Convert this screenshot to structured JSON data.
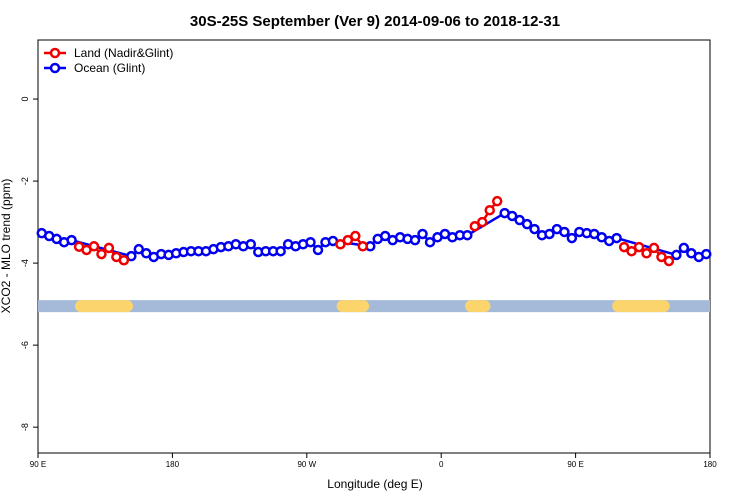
{
  "chart_data": {
    "type": "line",
    "title": "30S-25S September (Ver 9)   2014-09-06 to 2018-12-31",
    "x_label": "Longitude (deg E)",
    "y_label": "XCO2 - MLO trend (ppm)",
    "xlim": [
      90,
      540
    ],
    "ylim": [
      -8.63,
      1.44
    ],
    "xticks": [
      {
        "value": 90,
        "label": "90 E"
      },
      180,
      {
        "value": 270,
        "label": "90 W"
      },
      {
        "value": 360,
        "label": "0"
      },
      {
        "value": 450,
        "label": "90 E"
      },
      {
        "value": 540,
        "label": "180"
      }
    ],
    "yticks": [
      0,
      -2,
      -4,
      -6,
      -8
    ],
    "legend": "top-left",
    "mask": {
      "y": -5.05,
      "ocean_color": "#a5b9d8",
      "land_color": "#fbd46c",
      "land_ranges": [
        [
          114.8,
          153.6
        ],
        [
          290,
          311.7
        ],
        [
          376,
          393
        ],
        [
          474.5,
          513
        ]
      ]
    },
    "series": [
      {
        "name": "Land (Nadir&Glint)",
        "color": "#ee0000",
        "x": [
          117.5,
          122.5,
          127.5,
          132.5,
          137.5,
          142.5,
          147.5,
          null,
          292.5,
          297.5,
          302.5,
          307.5,
          null,
          382.5,
          387.5,
          392.5,
          397.5,
          null,
          482.5,
          487.5,
          492.5,
          497.5,
          502.5,
          507.5,
          512.5
        ],
        "values": [
          -3.6,
          -3.68,
          -3.59,
          -3.78,
          -3.63,
          -3.85,
          -3.93,
          null,
          -3.54,
          -3.44,
          -3.34,
          -3.59,
          null,
          -3.1,
          -3.0,
          -2.71,
          -2.49,
          null,
          -3.61,
          -3.71,
          -3.61,
          -3.76,
          -3.63,
          -3.85,
          -3.95
        ]
      },
      {
        "name": "Ocean (Glint)",
        "color": "#0000ee",
        "x": [
          92.5,
          97.5,
          102.5,
          107.5,
          112.5,
          152.5,
          157.5,
          162.5,
          167.5,
          172.5,
          177.5,
          182.5,
          187.5,
          192.5,
          197.5,
          202.5,
          207.5,
          212.5,
          217.5,
          222.5,
          227.5,
          232.5,
          237.5,
          242.5,
          247.5,
          252.5,
          257.5,
          262.5,
          267.5,
          272.5,
          277.5,
          282.5,
          287.5,
          312.5,
          317.5,
          322.5,
          327.5,
          332.5,
          337.5,
          342.5,
          347.5,
          352.5,
          357.5,
          362.5,
          367.5,
          372.5,
          377.5,
          402.5,
          407.5,
          412.5,
          417.5,
          422.5,
          427.5,
          432.5,
          437.5,
          442.5,
          447.5,
          452.5,
          457.5,
          462.5,
          467.5,
          472.5,
          477.5,
          517.5,
          522.5,
          527.5,
          532.5,
          537.5
        ],
        "values": [
          -3.27,
          -3.34,
          -3.41,
          -3.49,
          -3.44,
          -3.83,
          -3.66,
          -3.76,
          -3.85,
          -3.78,
          -3.8,
          -3.76,
          -3.73,
          -3.71,
          -3.71,
          -3.71,
          -3.66,
          -3.61,
          -3.59,
          -3.54,
          -3.59,
          -3.54,
          -3.73,
          -3.71,
          -3.71,
          -3.71,
          -3.54,
          -3.59,
          -3.54,
          -3.49,
          -3.68,
          -3.49,
          -3.46,
          -3.59,
          -3.41,
          -3.34,
          -3.44,
          -3.37,
          -3.41,
          -3.44,
          -3.29,
          -3.49,
          -3.37,
          -3.29,
          -3.37,
          -3.32,
          -3.32,
          -2.78,
          -2.85,
          -2.95,
          -3.05,
          -3.17,
          -3.32,
          -3.29,
          -3.17,
          -3.24,
          -3.39,
          -3.24,
          -3.27,
          -3.29,
          -3.37,
          -3.46,
          -3.39,
          -3.8,
          -3.63,
          -3.76,
          -3.85,
          -3.78
        ]
      }
    ]
  }
}
